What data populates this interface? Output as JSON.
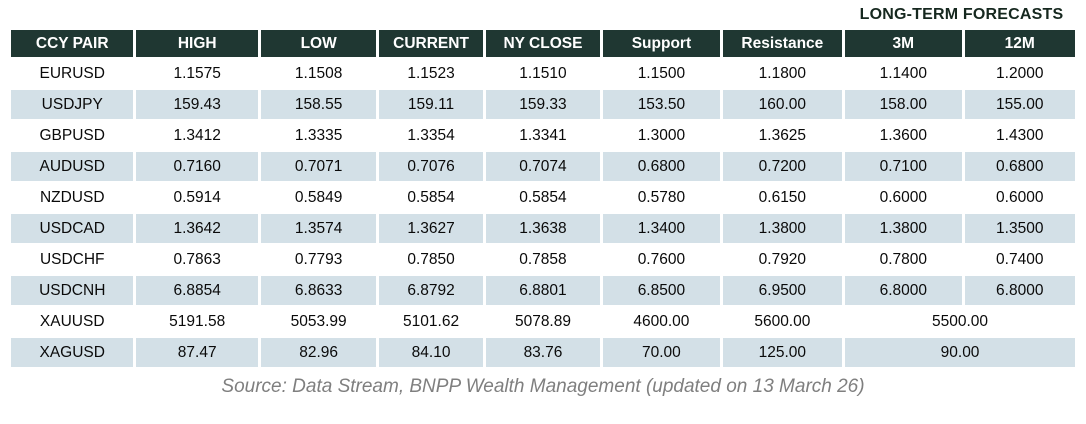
{
  "title": "LONG-TERM FORECASTS",
  "colors": {
    "header_bg": "#1f3732",
    "alt_row_bg": "#d3e0e7",
    "body_text": "#0a0a0a",
    "header_text": "#ffffff",
    "title_text": "#16281f",
    "footer_text": "#7f7f7f"
  },
  "table": {
    "headers": [
      "CCY PAIR",
      "HIGH",
      "LOW",
      "CURRENT",
      "NY CLOSE",
      "Support",
      "Resistance",
      "3M",
      "12M"
    ],
    "rows": [
      {
        "pair": "EURUSD",
        "values": [
          "1.1575",
          "1.1508",
          "1.1523",
          "1.1510",
          "1.1500",
          "1.1800",
          "1.1400",
          "1.2000"
        ]
      },
      {
        "pair": "USDJPY",
        "values": [
          "159.43",
          "158.55",
          "159.11",
          "159.33",
          "153.50",
          "160.00",
          "158.00",
          "155.00"
        ]
      },
      {
        "pair": "GBPUSD",
        "values": [
          "1.3412",
          "1.3335",
          "1.3354",
          "1.3341",
          "1.3000",
          "1.3625",
          "1.3600",
          "1.4300"
        ]
      },
      {
        "pair": "AUDUSD",
        "values": [
          "0.7160",
          "0.7071",
          "0.7076",
          "0.7074",
          "0.6800",
          "0.7200",
          "0.7100",
          "0.6800"
        ]
      },
      {
        "pair": "NZDUSD",
        "values": [
          "0.5914",
          "0.5849",
          "0.5854",
          "0.5854",
          "0.5780",
          "0.6150",
          "0.6000",
          "0.6000"
        ]
      },
      {
        "pair": "USDCAD",
        "values": [
          "1.3642",
          "1.3574",
          "1.3627",
          "1.3638",
          "1.3400",
          "1.3800",
          "1.3800",
          "1.3500"
        ]
      },
      {
        "pair": "USDCHF",
        "values": [
          "0.7863",
          "0.7793",
          "0.7850",
          "0.7858",
          "0.7600",
          "0.7920",
          "0.7800",
          "0.7400"
        ]
      },
      {
        "pair": "USDCNH",
        "values": [
          "6.8854",
          "6.8633",
          "6.8792",
          "6.8801",
          "6.8500",
          "6.9500",
          "6.8000",
          "6.8000"
        ]
      },
      {
        "pair": "XAUUSD",
        "values": [
          "5191.58",
          "5053.99",
          "5101.62",
          "5078.89",
          "4600.00",
          "5600.00"
        ],
        "forecast_merged": "5500.00"
      },
      {
        "pair": "XAGUSD",
        "values": [
          "87.47",
          "82.96",
          "84.10",
          "83.76",
          "70.00",
          "125.00"
        ],
        "forecast_merged": "90.00"
      }
    ]
  },
  "footer": {
    "source_note": "Source: Data Stream, BNPP Wealth Management (updated on 13 March 26)"
  }
}
